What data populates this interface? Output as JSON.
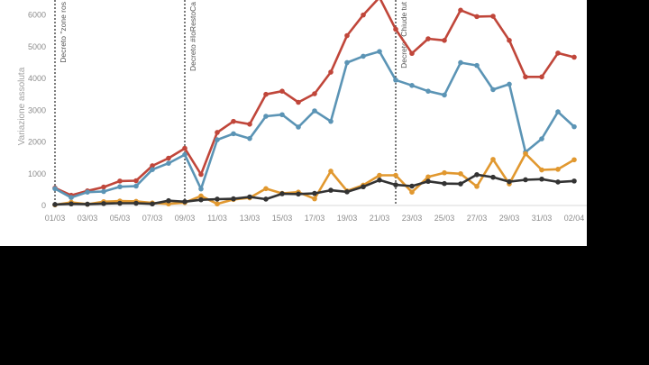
{
  "chart_data": {
    "type": "line",
    "ylabel": "Variazione assoluta",
    "ylim": [
      0,
      6500
    ],
    "yticks": [
      0,
      1000,
      2000,
      3000,
      4000,
      5000,
      6000
    ],
    "x": [
      "01/03",
      "02/03",
      "03/03",
      "04/03",
      "05/03",
      "06/03",
      "07/03",
      "08/03",
      "09/03",
      "10/03",
      "11/03",
      "12/03",
      "13/03",
      "14/03",
      "15/03",
      "16/03",
      "17/03",
      "18/03",
      "19/03",
      "20/03",
      "21/03",
      "22/03",
      "23/03",
      "24/03",
      "25/03",
      "26/03",
      "27/03",
      "28/03",
      "29/03",
      "30/03",
      "31/03",
      "01/04",
      "02/04"
    ],
    "xtick_labels": [
      "01/03",
      "03/03",
      "05/03",
      "07/03",
      "09/03",
      "11/03",
      "13/03",
      "15/03",
      "17/03",
      "19/03",
      "21/03",
      "23/03",
      "25/03",
      "27/03",
      "29/03",
      "31/03",
      "02/04"
    ],
    "grid": false,
    "series": [
      {
        "color": "#c0463a",
        "values": [
          550,
          320,
          460,
          580,
          770,
          780,
          1250,
          1490,
          1800,
          980,
          2300,
          2650,
          2560,
          3500,
          3600,
          3250,
          3520,
          4200,
          5350,
          6000,
          6550,
          5550,
          4790,
          5250,
          5200,
          6150,
          5950,
          5960,
          5200,
          4050,
          4050,
          4800,
          4670
        ]
      },
      {
        "color": "#5b94b5",
        "values": [
          530,
          250,
          420,
          440,
          590,
          610,
          1130,
          1330,
          1600,
          520,
          2070,
          2260,
          2110,
          2810,
          2860,
          2470,
          2980,
          2650,
          4500,
          4700,
          4850,
          3950,
          3780,
          3600,
          3480,
          4500,
          4410,
          3650,
          3820,
          1680,
          2100,
          2950,
          2480
        ]
      },
      {
        "color": "#e1982f",
        "values": [
          20,
          100,
          40,
          120,
          140,
          130,
          80,
          50,
          90,
          300,
          50,
          190,
          240,
          530,
          380,
          420,
          210,
          1080,
          460,
          640,
          950,
          950,
          420,
          900,
          1030,
          1000,
          600,
          1450,
          680,
          1630,
          1120,
          1140,
          1440
        ]
      },
      {
        "color": "#333333",
        "values": [
          30,
          50,
          40,
          60,
          70,
          70,
          50,
          150,
          120,
          180,
          200,
          210,
          270,
          200,
          370,
          360,
          380,
          480,
          430,
          590,
          800,
          650,
          610,
          760,
          690,
          680,
          970,
          890,
          750,
          810,
          830,
          740,
          770
        ]
      }
    ],
    "annotations": [
      {
        "x": "01/03",
        "text": "Decreto \"zone ros"
      },
      {
        "x": "09/03",
        "text": "Decreto #IoRestoCa"
      },
      {
        "x": "22/03",
        "text": "Decreto \"Chiude tut"
      }
    ]
  }
}
